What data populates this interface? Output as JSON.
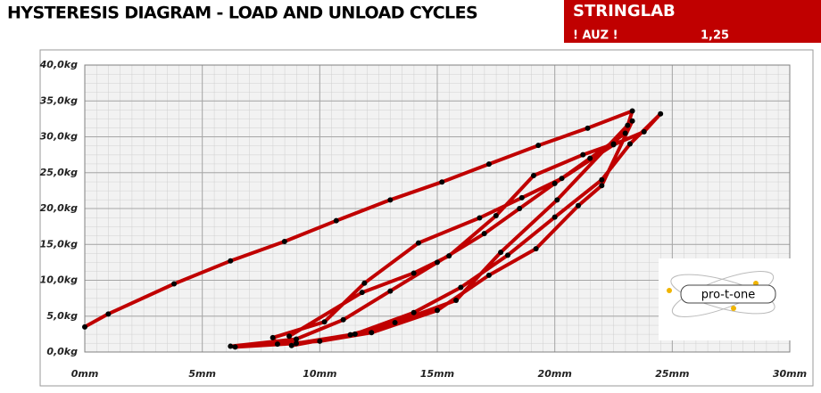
{
  "header": {
    "brand": "STRINGLAB",
    "code": "! AUZ !",
    "value": "1,25"
  },
  "logo": "pro-t-one",
  "chart_data": {
    "type": "line",
    "title": "HYSTERESIS DIAGRAM - LOAD AND UNLOAD CYCLES",
    "color": "#c00000",
    "marker_color": "#000000",
    "grid": true,
    "x": [
      0,
      1,
      3.8,
      6.2,
      8.5,
      10.7,
      13,
      15.2,
      17.2,
      19.3,
      21.4,
      23.3,
      23,
      21.5,
      20,
      18.5,
      17,
      15,
      13,
      11,
      9,
      6.2,
      6.4,
      9,
      11.5,
      14,
      16,
      18,
      20,
      22,
      23.2,
      24.5,
      23.8,
      22.5,
      20.3,
      18.6,
      16.8,
      14.2,
      11.9,
      10.2,
      8,
      8.2,
      10,
      12.2,
      15,
      17.2,
      19.2,
      21,
      22,
      23.3,
      22.5,
      21.2,
      19.1,
      17.5,
      15.5,
      14,
      11.8,
      8.7,
      8.8,
      11.3,
      13.2,
      15.8,
      17.7,
      20.1,
      23.1
    ],
    "values": [
      3.5,
      5.3,
      9.5,
      12.7,
      15.4,
      18.3,
      21.2,
      23.7,
      26.2,
      28.8,
      31.2,
      33.6,
      30.5,
      27,
      23.5,
      20,
      16.5,
      12.5,
      8.5,
      4.5,
      1.8,
      0.8,
      0.7,
      1.2,
      2.5,
      5.5,
      9,
      13.5,
      18.8,
      24,
      29,
      33.2,
      30.7,
      28.9,
      24.2,
      21.5,
      18.7,
      15.2,
      9.6,
      4.2,
      2,
      1.1,
      1.5,
      2.7,
      5.8,
      10.7,
      14.4,
      20.4,
      23.2,
      32.2,
      29,
      27.5,
      24.6,
      19,
      13.4,
      11,
      8.3,
      2.2,
      0.9,
      2.4,
      4.1,
      7.2,
      13.9,
      21.2,
      31.6
    ],
    "xlim": [
      0,
      30
    ],
    "ylim": [
      0,
      40
    ],
    "xticks": [
      {
        "value": 0,
        "label": "0mm"
      },
      {
        "value": 5,
        "label": "5mm"
      },
      {
        "value": 10,
        "label": "10mm"
      },
      {
        "value": 15,
        "label": "15mm"
      },
      {
        "value": 20,
        "label": "20mm"
      },
      {
        "value": 25,
        "label": "25mm"
      },
      {
        "value": 30,
        "label": "30mm"
      }
    ],
    "yticks": [
      {
        "value": 0,
        "label": "0,0kg"
      },
      {
        "value": 5,
        "label": "5,0kg"
      },
      {
        "value": 10,
        "label": "10,0kg"
      },
      {
        "value": 15,
        "label": "15,0kg"
      },
      {
        "value": 20,
        "label": "20,0kg"
      },
      {
        "value": 25,
        "label": "25,0kg"
      },
      {
        "value": 30,
        "label": "30,0kg"
      },
      {
        "value": 35,
        "label": "35,0kg"
      },
      {
        "value": 40,
        "label": "40,0kg"
      }
    ]
  }
}
